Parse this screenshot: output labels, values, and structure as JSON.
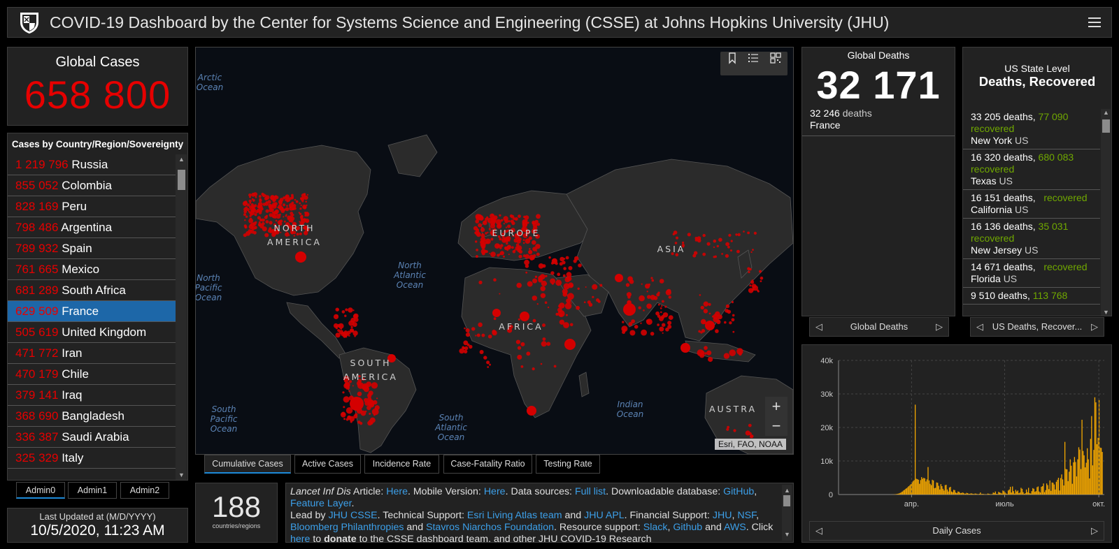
{
  "header": {
    "title": "COVID-19 Dashboard by the Center for Systems Science and Engineering (CSSE) at Johns Hopkins University (JHU)"
  },
  "global_cases": {
    "label": "Global Cases",
    "value": "658 800"
  },
  "country_list": {
    "title": "Cases by Country/Region/Sovereignty",
    "rows": [
      {
        "num": "1 219 796",
        "name": "Russia"
      },
      {
        "num": "855 052",
        "name": "Colombia"
      },
      {
        "num": "828 169",
        "name": "Peru"
      },
      {
        "num": "798 486",
        "name": "Argentina"
      },
      {
        "num": "789 932",
        "name": "Spain"
      },
      {
        "num": "761 665",
        "name": "Mexico"
      },
      {
        "num": "681 289",
        "name": "South Africa"
      },
      {
        "num": "629 509",
        "name": "France"
      },
      {
        "num": "505 619",
        "name": "United Kingdom"
      },
      {
        "num": "471 772",
        "name": "Iran"
      },
      {
        "num": "470 179",
        "name": "Chile"
      },
      {
        "num": "379 141",
        "name": "Iraq"
      },
      {
        "num": "368 690",
        "name": "Bangladesh"
      },
      {
        "num": "336 387",
        "name": "Saudi Arabia"
      },
      {
        "num": "325 329",
        "name": "Italy"
      }
    ],
    "selected": "France"
  },
  "admin_tabs": [
    "Admin0",
    "Admin1",
    "Admin2"
  ],
  "last_updated": {
    "label": "Last Updated at (M/D/YYYY)",
    "value": "10/5/2020, 11:23 AM"
  },
  "map": {
    "ocean_labels": {
      "arctic": "Arctic Ocean",
      "north_pacific": "North Pacific Ocean",
      "north_atlantic": "North Atlantic Ocean",
      "south_pacific": "South Pacific Ocean",
      "south_atlantic": "South Atlantic Ocean",
      "indian": "Indian Ocean",
      "top_right": "Ocean"
    },
    "continent_labels": {
      "north_america": "NORTH AMERICA",
      "europe": "EUROPE",
      "asia": "ASIA",
      "africa": "AFRICA",
      "south_america": "SOUTH AMERICA",
      "australia": "AUSTRA"
    },
    "attribution": "Esri, FAO, NOAA",
    "zoom_in": "+",
    "zoom_out": "−",
    "colors": {
      "ocean": "#090d14",
      "land": "#2b2b2b",
      "dots": "#d40000"
    }
  },
  "map_tabs": [
    "Cumulative Cases",
    "Active Cases",
    "Incidence Rate",
    "Case-Fatality Ratio",
    "Testing Rate"
  ],
  "countries_count": {
    "value": "188",
    "label": "countries/regions"
  },
  "info": {
    "p1_a": "Lancet Inf Dis",
    "p1_b": " Article: ",
    "p1_c": "Here",
    "p1_d": ". Mobile Version: ",
    "p1_e": "Here",
    "p1_f": ". Data sources: ",
    "p1_g": "Full list",
    "p1_h": ". Downloadable database: ",
    "p1_i": "GitHub",
    "p1_j": ", ",
    "p1_k": "Feature Layer",
    "p1_l": ".",
    "p2_a": "Lead by ",
    "p2_b": "JHU CSSE",
    "p2_c": ". Technical Support: ",
    "p2_d": "Esri Living Atlas team",
    "p2_e": " and ",
    "p2_f": "JHU APL",
    "p2_g": ". Financial Support: ",
    "p2_h": "JHU",
    "p2_i": ", ",
    "p2_j": "NSF",
    "p2_k": ", ",
    "p2_l": "Bloomberg Philanthropies",
    "p2_m": " and ",
    "p2_n": "Stavros Niarchos Foundation",
    "p2_o": ". Resource support: ",
    "p2_p": "Slack",
    "p2_q": ", ",
    "p2_r": "Github",
    "p2_s": " and ",
    "p2_t": "AWS",
    "p2_u": ". Click ",
    "p2_v": "here",
    "p2_w": " to ",
    "p2_x": "donate",
    "p2_y": " to the CSSE dashboard team, and other JHU COVID-19 Research"
  },
  "global_deaths": {
    "label": "Global Deaths",
    "value": "32 171",
    "row": {
      "deaths": "32 246",
      "deaths_word": "deaths",
      "place": "France"
    },
    "pager": "Global Deaths"
  },
  "us_state": {
    "top": "US State Level",
    "title": "Deaths, Recovered",
    "rows": [
      {
        "deaths": "33 205 deaths,",
        "recovered": "77 090",
        "recovered_word": "recovered",
        "state": "New York",
        "country": "US"
      },
      {
        "deaths": "16 320 deaths,",
        "recovered": "680 083",
        "recovered_word": "recovered",
        "state": "Texas",
        "country": "US"
      },
      {
        "deaths": "16 151 deaths,",
        "recovered": "",
        "recovered_word": "recovered",
        "state": "California",
        "country": "US"
      },
      {
        "deaths": "16 136 deaths,",
        "recovered": "35 031",
        "recovered_word": "recovered",
        "state": "New Jersey",
        "country": "US"
      },
      {
        "deaths": "14 671 deaths,",
        "recovered": "",
        "recovered_word": "recovered",
        "state": "Florida",
        "country": "US"
      },
      {
        "deaths": "9 510 deaths,",
        "recovered": "113 768",
        "recovered_word": "",
        "state": "",
        "country": ""
      }
    ],
    "pager": "US Deaths, Recover..."
  },
  "chart_data": {
    "type": "bar",
    "title": "",
    "xlabel": "",
    "ylabel": "",
    "ylim": [
      0,
      40000
    ],
    "yticks": [
      "0",
      "10k",
      "20k",
      "30k",
      "40k"
    ],
    "xticks": [
      "апр.",
      "июль",
      "окт."
    ],
    "x_start": "2020-01-22",
    "x_end": "2020-10-05",
    "color": "#f5a800",
    "series": [
      {
        "name": "Daily Cases",
        "values": [
          0,
          0,
          0,
          0,
          0,
          0,
          0,
          0,
          0,
          0,
          0,
          0,
          0,
          0,
          0,
          0,
          0,
          0,
          0,
          0,
          0,
          0,
          0,
          0,
          0,
          0,
          0,
          0,
          0,
          0,
          0,
          0,
          0,
          0,
          0,
          0,
          0,
          0,
          0,
          0,
          0,
          0,
          0,
          0,
          0,
          0,
          0,
          0,
          10,
          20,
          40,
          80,
          120,
          180,
          250,
          350,
          500,
          700,
          900,
          1200,
          1400,
          1700,
          1900,
          2200,
          2500,
          2800,
          3100,
          3600,
          4000,
          4300,
          26800,
          4700,
          4600,
          4400,
          3200,
          4300,
          5200,
          4700,
          5000,
          4800,
          3900,
          4500,
          8200,
          4200,
          3200,
          2800,
          4400,
          4200,
          1900,
          2000,
          3600,
          3500,
          2600,
          1500,
          3100,
          2500,
          1700,
          1200,
          2800,
          2900,
          1500,
          900,
          2100,
          2300,
          900,
          700,
          1400,
          1300,
          600,
          400,
          900,
          800,
          500,
          400,
          600,
          500,
          300,
          250,
          500,
          400,
          250,
          200,
          350,
          300,
          200,
          150,
          300,
          250,
          150,
          100,
          200,
          600,
          150,
          200,
          150,
          100,
          80,
          100,
          300,
          200,
          120,
          90,
          150,
          600,
          450,
          900,
          200,
          150,
          800,
          600,
          500,
          300,
          1200,
          1000,
          700,
          300,
          150,
          1200,
          1500,
          2300,
          600,
          2400,
          1000,
          300,
          1400,
          900,
          1200,
          400,
          600,
          2000,
          1700,
          700,
          200,
          400,
          1500,
          700,
          2000,
          400,
          300,
          1000,
          1900,
          1700,
          800,
          1000,
          2200,
          2400,
          900,
          600,
          2300,
          2500,
          3300,
          700,
          1300,
          3300,
          2800,
          1600,
          4200,
          1100,
          3600,
          3500,
          3000,
          1500,
          3800,
          4400,
          5000,
          1200,
          4900,
          6000,
          4500,
          2700,
          15700,
          7600,
          7500,
          4000,
          6800,
          10500,
          8600,
          3200,
          9600,
          11200,
          9700,
          5400,
          10500,
          14100,
          13400,
          7600,
          22300,
          13000,
          11700,
          8100,
          9500,
          13800,
          10500,
          4800,
          16600,
          23400,
          8700,
          13300,
          29000,
          27500,
          15000,
          16900,
          28200,
          14000,
          13900,
          12700
        ]
      }
    ]
  }
}
